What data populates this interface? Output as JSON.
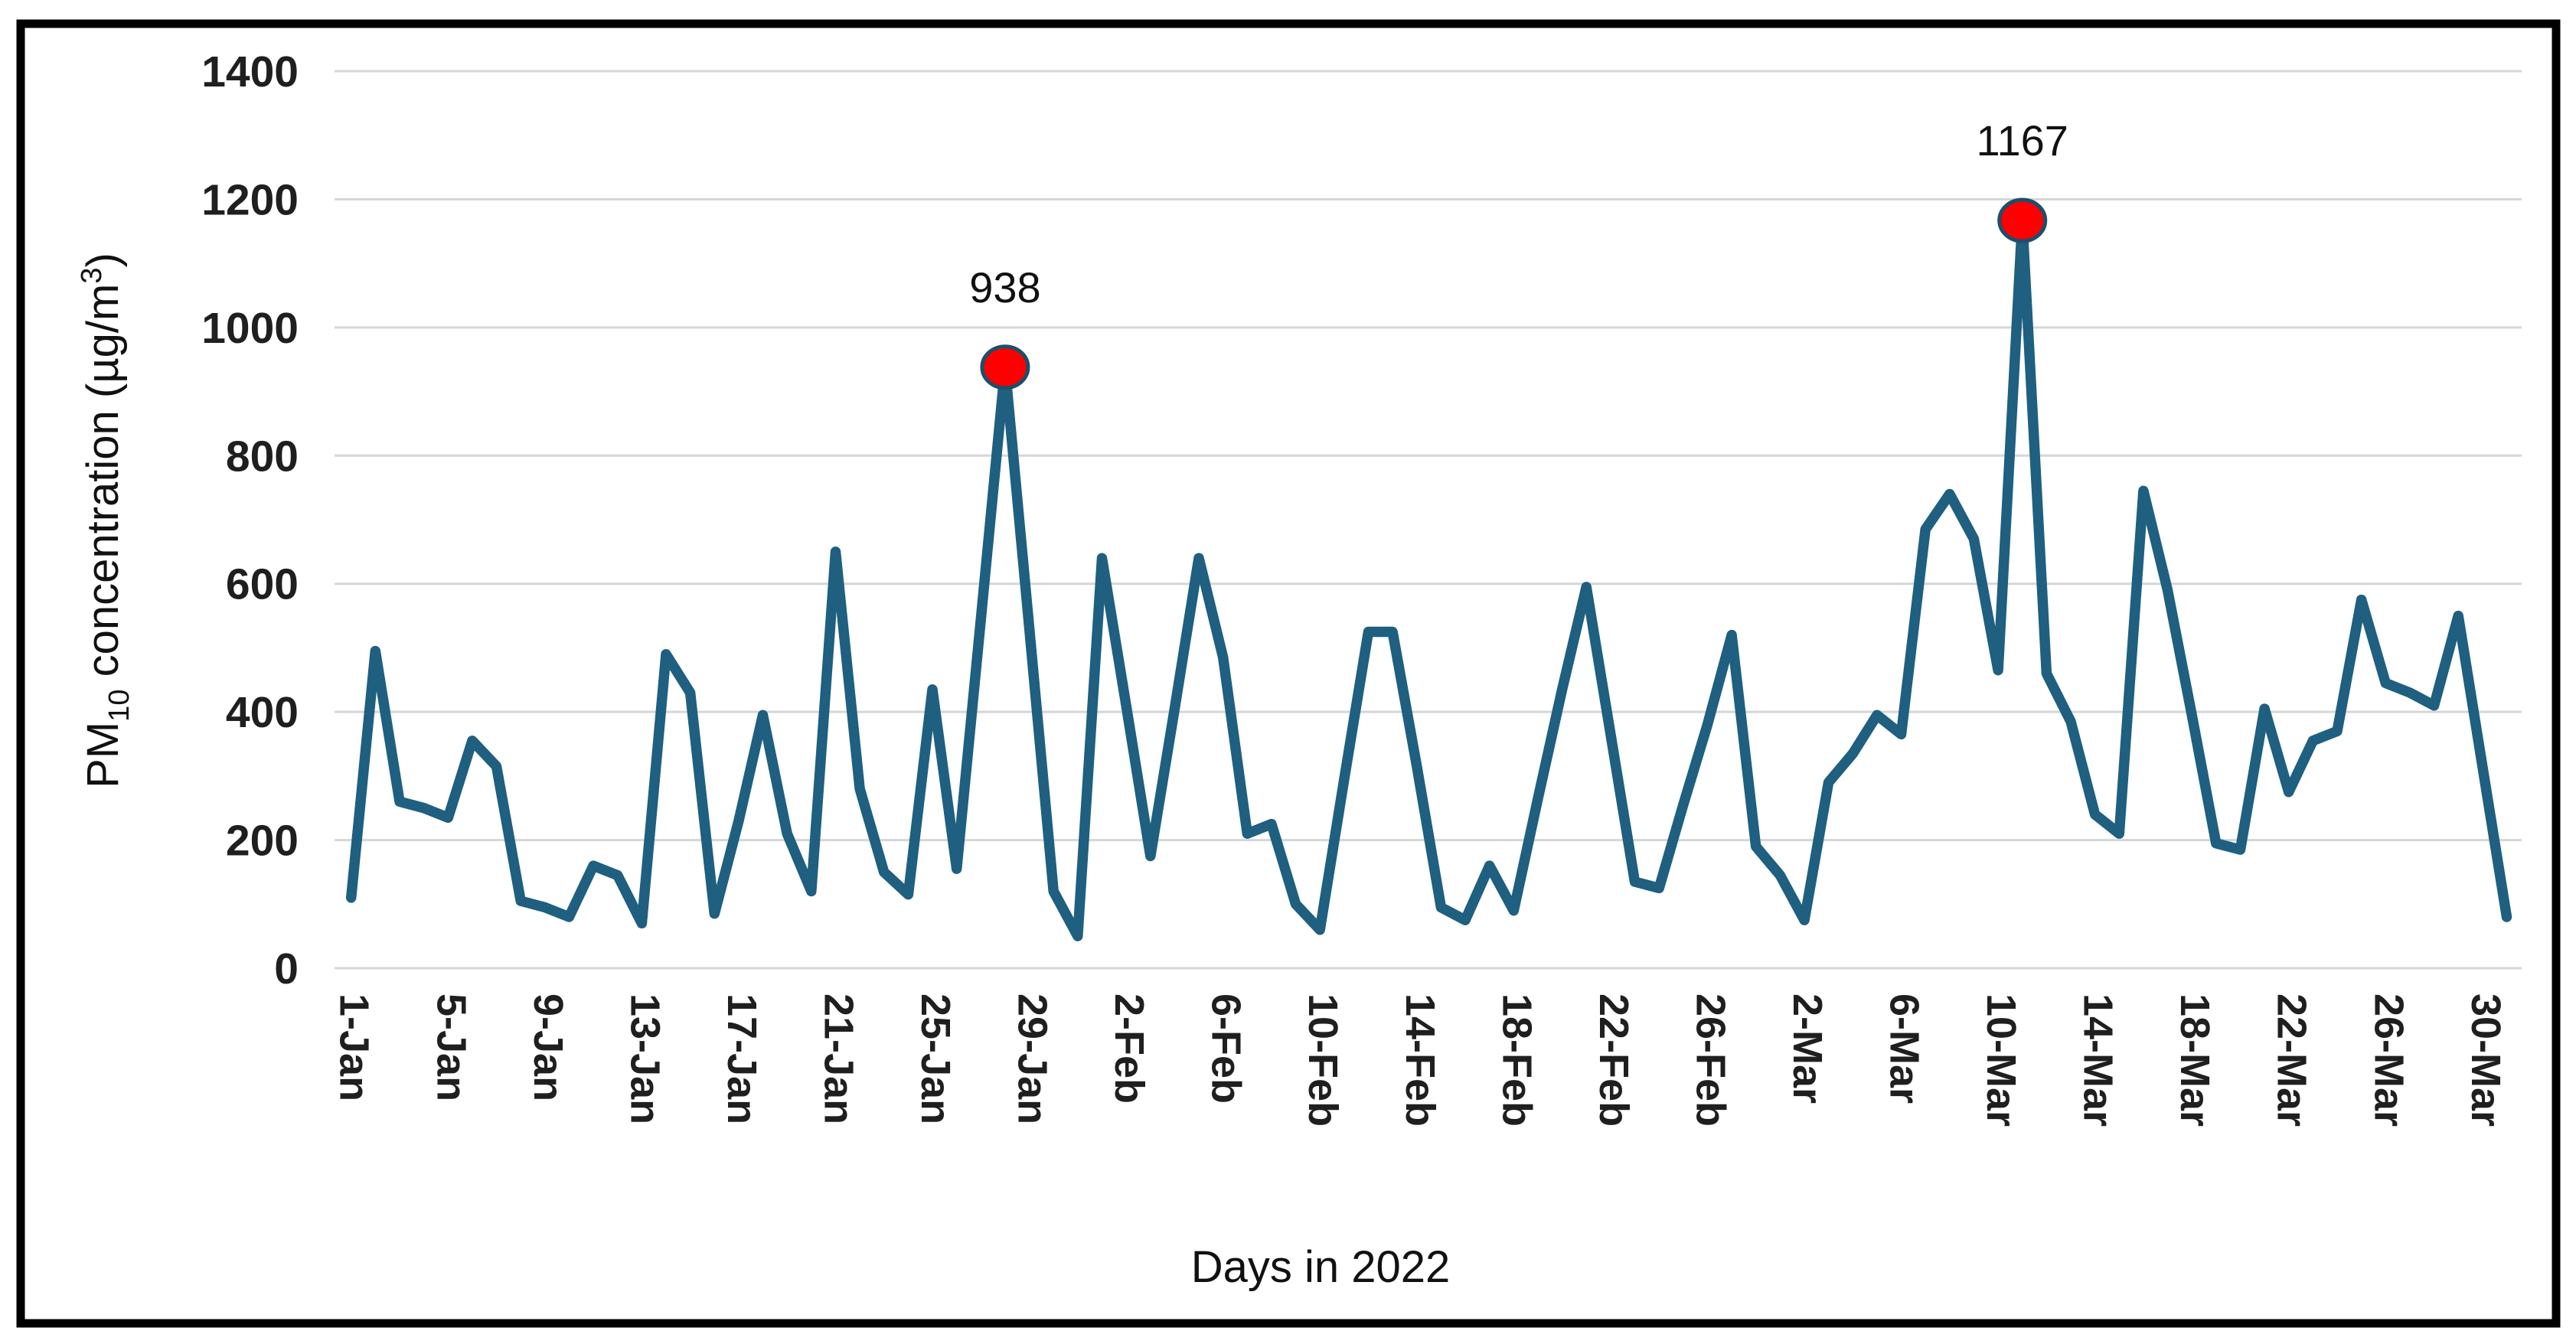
{
  "chart_data": {
    "type": "line",
    "title": "",
    "xlabel": "Days in 2022",
    "ylabel": "PM10 concentration (µg/m3)",
    "ylabel_parts": {
      "pm": "PM",
      "sub": "10",
      "mid": " concentration (µg/m",
      "sup": "3",
      "close": ")"
    },
    "ylim": [
      0,
      1400
    ],
    "ytick_step": 200,
    "yticks": [
      0,
      200,
      400,
      600,
      800,
      1000,
      1200,
      1400
    ],
    "x_tick_step": 4,
    "grid": true,
    "legend": false,
    "line_color": "#1f5f80",
    "marker_color": "#ff0000",
    "marker_edge_color": "#1b4f6b",
    "gridline_color": "#d6d6d6",
    "border_color": "#000000",
    "x": [
      "1-Jan",
      "2-Jan",
      "3-Jan",
      "4-Jan",
      "5-Jan",
      "6-Jan",
      "7-Jan",
      "8-Jan",
      "9-Jan",
      "10-Jan",
      "11-Jan",
      "12-Jan",
      "13-Jan",
      "14-Jan",
      "15-Jan",
      "16-Jan",
      "17-Jan",
      "18-Jan",
      "19-Jan",
      "20-Jan",
      "21-Jan",
      "22-Jan",
      "23-Jan",
      "24-Jan",
      "25-Jan",
      "26-Jan",
      "27-Jan",
      "28-Jan",
      "29-Jan",
      "30-Jan",
      "31-Jan",
      "1-Feb",
      "2-Feb",
      "3-Feb",
      "4-Feb",
      "5-Feb",
      "6-Feb",
      "7-Feb",
      "8-Feb",
      "9-Feb",
      "10-Feb",
      "11-Feb",
      "12-Feb",
      "13-Feb",
      "14-Feb",
      "15-Feb",
      "16-Feb",
      "17-Feb",
      "18-Feb",
      "19-Feb",
      "20-Feb",
      "21-Feb",
      "22-Feb",
      "23-Feb",
      "24-Feb",
      "25-Feb",
      "26-Feb",
      "27-Feb",
      "28-Feb",
      "1-Mar",
      "2-Mar",
      "3-Mar",
      "4-Mar",
      "5-Mar",
      "6-Mar",
      "7-Mar",
      "8-Mar",
      "9-Mar",
      "10-Mar",
      "11-Mar",
      "12-Mar",
      "13-Mar",
      "14-Mar",
      "15-Mar",
      "16-Mar",
      "17-Mar",
      "18-Mar",
      "19-Mar",
      "20-Mar",
      "21-Mar",
      "22-Mar",
      "23-Mar",
      "24-Mar",
      "25-Mar",
      "26-Mar",
      "27-Mar",
      "28-Mar",
      "29-Mar",
      "30-Mar",
      "31-Mar"
    ],
    "values": [
      110,
      495,
      260,
      250,
      235,
      355,
      315,
      105,
      95,
      80,
      160,
      145,
      70,
      490,
      430,
      85,
      230,
      395,
      210,
      120,
      650,
      280,
      150,
      115,
      435,
      155,
      545,
      938,
      530,
      120,
      50,
      640,
      410,
      175,
      405,
      640,
      485,
      210,
      225,
      100,
      60,
      295,
      525,
      525,
      315,
      95,
      75,
      160,
      90,
      265,
      435,
      595,
      365,
      135,
      125,
      255,
      380,
      520,
      190,
      145,
      75,
      290,
      335,
      395,
      365,
      685,
      740,
      670,
      465,
      1167,
      460,
      385,
      240,
      210,
      745,
      590,
      395,
      195,
      185,
      405,
      275,
      355,
      370,
      575,
      445,
      430,
      410,
      550,
      315,
      80
    ],
    "annotations": [
      {
        "x": "28-Jan",
        "value": 938,
        "label": "938"
      },
      {
        "x": "11-Mar",
        "value": 1167,
        "label": "1167"
      }
    ]
  }
}
